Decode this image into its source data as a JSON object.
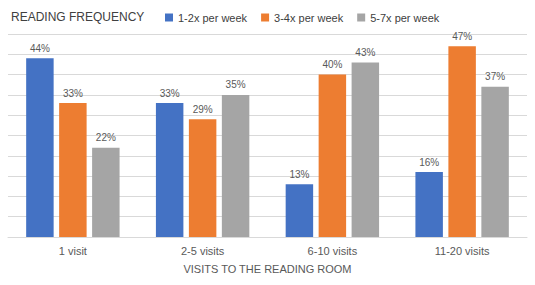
{
  "chart_data": {
    "type": "bar",
    "title": "READING FREQUENCY",
    "categories": [
      "1 visit",
      "2-5 visits",
      "6-10 visits",
      "11-20 visits"
    ],
    "x_label": "VISITS TO THE READING ROOM",
    "series": [
      {
        "name": "1-2x per week",
        "color": "#4472c4",
        "values": [
          44,
          33,
          13,
          16
        ],
        "value_labels": [
          "44%",
          "33%",
          "13%",
          "16%"
        ]
      },
      {
        "name": "3-4x per week",
        "color": "#ed7d31",
        "values": [
          33,
          29,
          40,
          47
        ],
        "value_labels": [
          "33%",
          "29%",
          "40%",
          "47%"
        ]
      },
      {
        "name": "5-7x per week",
        "color": "#a5a5a5",
        "values": [
          22,
          35,
          43,
          37
        ],
        "value_labels": [
          "22%",
          "35%",
          "43%",
          "37%"
        ]
      }
    ],
    "ylim": [
      0,
      50
    ],
    "yticks": [
      0,
      5,
      10,
      15,
      20,
      25,
      30,
      35,
      40,
      45,
      50
    ],
    "grid": true,
    "legend": "top",
    "data_labels": true,
    "tick_labels": "x"
  }
}
